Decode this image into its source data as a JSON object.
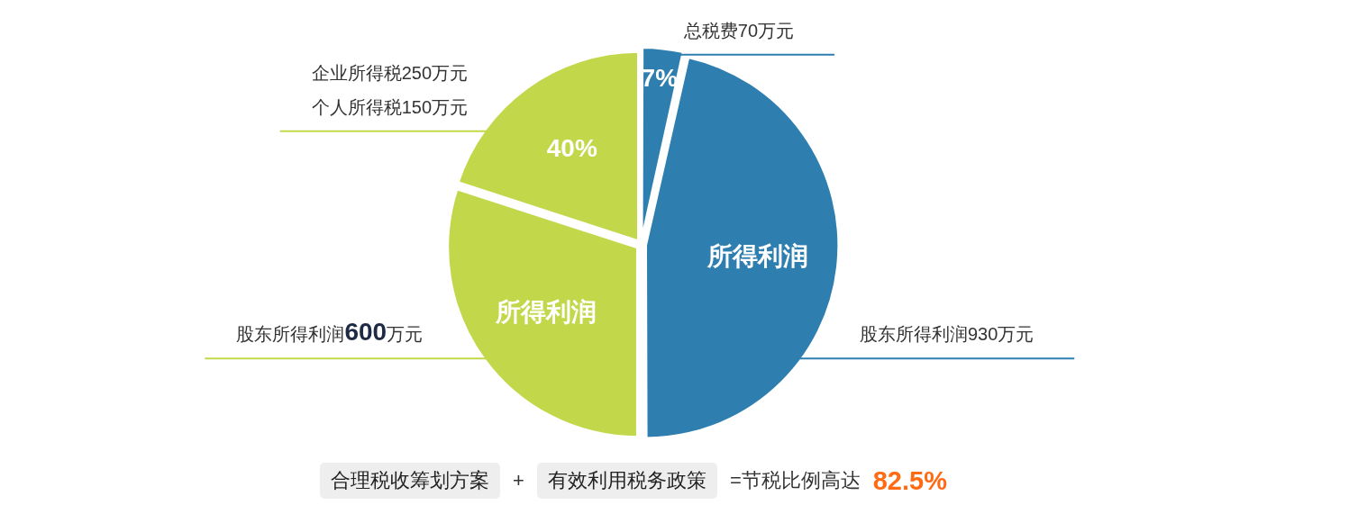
{
  "chart_data": {
    "type": "pie",
    "categories": [
      "总税费70万元",
      "股东所得利润930万元",
      "股东所得利润600万元",
      "企业所得税250万元个人所得税150万元"
    ],
    "values": [
      7,
      93,
      60,
      40
    ],
    "colors": [
      "#2e7fb0",
      "#2e7fb0",
      "#c2d84a",
      "#c2d84a"
    ],
    "value_labels": [
      "7%",
      "所得利润",
      "所得利润",
      "40%"
    ],
    "annotations": [
      "合理税收筹划方案",
      "+",
      "有效利用税务政策",
      "=节税比例高达",
      "82.5%"
    ]
  }
}
